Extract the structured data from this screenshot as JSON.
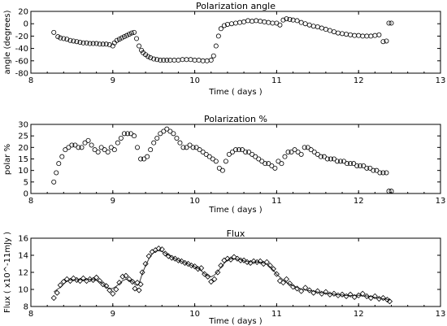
{
  "chart_data": [
    {
      "type": "scatter",
      "title": "Polarization angle",
      "xlabel": "Time ( days )",
      "ylabel": "angle (degrees)",
      "xlim": [
        8,
        13
      ],
      "ylim": [
        -80,
        20
      ],
      "x_ticks": [
        8,
        9,
        10,
        11,
        12,
        13
      ],
      "y_ticks": [
        -80,
        -60,
        -40,
        -20,
        0,
        20
      ],
      "x_tick_labels": [
        "8",
        "9",
        "10",
        "11",
        "12",
        "13"
      ],
      "y_tick_labels": [
        "-80",
        "-60",
        "-40",
        "-20",
        "0",
        "20"
      ],
      "marker": "circle",
      "x": [
        8.28,
        8.33,
        8.36,
        8.4,
        8.44,
        8.48,
        8.52,
        8.56,
        8.6,
        8.64,
        8.68,
        8.72,
        8.76,
        8.8,
        8.84,
        8.88,
        8.92,
        8.96,
        9.0,
        9.02,
        9.05,
        9.08,
        9.11,
        9.14,
        9.17,
        9.2,
        9.23,
        9.26,
        9.29,
        9.32,
        9.35,
        9.37,
        9.4,
        9.43,
        9.46,
        9.5,
        9.54,
        9.58,
        9.62,
        9.66,
        9.7,
        9.75,
        9.8,
        9.85,
        9.9,
        9.95,
        10.0,
        10.05,
        10.1,
        10.15,
        10.2,
        10.23,
        10.26,
        10.29,
        10.32,
        10.36,
        10.4,
        10.45,
        10.5,
        10.55,
        10.6,
        10.65,
        10.7,
        10.75,
        10.8,
        10.85,
        10.9,
        10.95,
        11.0,
        11.04,
        11.08,
        11.12,
        11.16,
        11.2,
        11.25,
        11.3,
        11.35,
        11.4,
        11.45,
        11.5,
        11.55,
        11.6,
        11.65,
        11.7,
        11.75,
        11.8,
        11.85,
        11.9,
        11.95,
        12.0,
        12.05,
        12.1,
        12.15,
        12.2,
        12.25,
        12.3,
        12.34,
        12.37,
        12.4
      ],
      "values": [
        -14,
        -21,
        -23,
        -24,
        -25,
        -27,
        -28,
        -29,
        -30,
        -31,
        -31,
        -32,
        -32,
        -32,
        -33,
        -33,
        -33,
        -34,
        -36,
        -31,
        -27,
        -25,
        -23,
        -21,
        -19,
        -17,
        -15,
        -14,
        -24,
        -36,
        -43,
        -47,
        -50,
        -53,
        -55,
        -57,
        -58,
        -59,
        -59,
        -59,
        -59,
        -59,
        -59,
        -58,
        -58,
        -58,
        -59,
        -59,
        -60,
        -60,
        -59,
        -52,
        -36,
        -20,
        -8,
        -3,
        -1,
        0,
        1,
        2,
        3,
        5,
        4,
        5,
        4,
        3,
        2,
        1,
        1,
        -2,
        6,
        8,
        7,
        6,
        5,
        2,
        0,
        -2,
        -4,
        -5,
        -7,
        -9,
        -11,
        -13,
        -15,
        -16,
        -17,
        -18,
        -19,
        -19,
        -20,
        -20,
        -20,
        -19,
        -18,
        -29,
        -28,
        1,
        1
      ]
    },
    {
      "type": "scatter",
      "title": "Polarization %",
      "xlabel": "Time ( days )",
      "ylabel": "polar %",
      "xlim": [
        8,
        13
      ],
      "ylim": [
        0,
        30
      ],
      "x_ticks": [
        8,
        9,
        10,
        11,
        12,
        13
      ],
      "y_ticks": [
        0,
        5,
        10,
        15,
        20,
        25,
        30
      ],
      "x_tick_labels": [
        "8",
        "9",
        "10",
        "11",
        "12",
        "13"
      ],
      "y_tick_labels": [
        "0",
        "5",
        "10",
        "15",
        "20",
        "25",
        "30"
      ],
      "marker": "circle",
      "x": [
        8.28,
        8.31,
        8.34,
        8.38,
        8.42,
        8.46,
        8.5,
        8.54,
        8.58,
        8.62,
        8.66,
        8.7,
        8.74,
        8.78,
        8.82,
        8.86,
        8.9,
        8.94,
        8.98,
        9.02,
        9.06,
        9.1,
        9.14,
        9.18,
        9.22,
        9.26,
        9.3,
        9.34,
        9.38,
        9.42,
        9.46,
        9.5,
        9.54,
        9.58,
        9.62,
        9.66,
        9.7,
        9.74,
        9.78,
        9.82,
        9.86,
        9.9,
        9.94,
        9.98,
        10.02,
        10.06,
        10.1,
        10.14,
        10.18,
        10.22,
        10.26,
        10.3,
        10.34,
        10.38,
        10.42,
        10.46,
        10.5,
        10.54,
        10.58,
        10.62,
        10.66,
        10.7,
        10.74,
        10.78,
        10.82,
        10.86,
        10.9,
        10.94,
        10.98,
        11.02,
        11.06,
        11.1,
        11.14,
        11.18,
        11.22,
        11.26,
        11.3,
        11.34,
        11.38,
        11.42,
        11.46,
        11.5,
        11.54,
        11.58,
        11.62,
        11.66,
        11.7,
        11.74,
        11.78,
        11.82,
        11.86,
        11.9,
        11.94,
        11.98,
        12.02,
        12.06,
        12.1,
        12.14,
        12.18,
        12.22,
        12.26,
        12.3,
        12.34,
        12.37,
        12.4
      ],
      "values": [
        5,
        9,
        13,
        16,
        19,
        20,
        21,
        21,
        20,
        20,
        22,
        23,
        21,
        19,
        18,
        20,
        19,
        18,
        20,
        19,
        22,
        24,
        26,
        26,
        26,
        25,
        20,
        15,
        15,
        16,
        19,
        22,
        24,
        26,
        27,
        28,
        27,
        26,
        24,
        22,
        20,
        20,
        21,
        20,
        20,
        19,
        18,
        17,
        16,
        15,
        14,
        11,
        10,
        14,
        17,
        18,
        19,
        19,
        19,
        18,
        18,
        17,
        16,
        15,
        14,
        13,
        13,
        12,
        11,
        14,
        13,
        16,
        18,
        18,
        19,
        18,
        17,
        20,
        20,
        19,
        18,
        17,
        16,
        16,
        15,
        15,
        15,
        14,
        14,
        14,
        13,
        13,
        13,
        12,
        12,
        12,
        11,
        11,
        10,
        10,
        9,
        9,
        9,
        1,
        1
      ]
    },
    {
      "type": "scatter",
      "title": "Flux",
      "xlabel": "Time ( days )",
      "ylabel": "Flux ( x10^-11mJy )",
      "xlim": [
        8,
        13
      ],
      "ylim": [
        8,
        16
      ],
      "x_ticks": [
        8,
        9,
        10,
        11,
        12,
        13
      ],
      "y_ticks": [
        8,
        10,
        12,
        14,
        16
      ],
      "x_tick_labels": [
        "8",
        "9",
        "10",
        "11",
        "12",
        "13"
      ],
      "y_tick_labels": [
        "8",
        "10",
        "12",
        "14",
        "16"
      ],
      "marker": "diamond",
      "x": [
        8.28,
        8.32,
        8.36,
        8.4,
        8.44,
        8.48,
        8.52,
        8.56,
        8.6,
        8.64,
        8.68,
        8.72,
        8.76,
        8.8,
        8.84,
        8.88,
        8.92,
        8.96,
        9.0,
        9.04,
        9.08,
        9.12,
        9.16,
        9.2,
        9.24,
        9.27,
        9.3,
        9.32,
        9.34,
        9.36,
        9.4,
        9.44,
        9.48,
        9.52,
        9.56,
        9.6,
        9.64,
        9.68,
        9.72,
        9.76,
        9.8,
        9.84,
        9.88,
        9.92,
        9.96,
        10.0,
        10.04,
        10.08,
        10.12,
        10.16,
        10.2,
        10.24,
        10.28,
        10.32,
        10.36,
        10.4,
        10.44,
        10.48,
        10.52,
        10.56,
        10.6,
        10.64,
        10.68,
        10.72,
        10.76,
        10.8,
        10.84,
        10.88,
        10.92,
        10.96,
        11.0,
        11.04,
        11.08,
        11.12,
        11.16,
        11.2,
        11.25,
        11.3,
        11.35,
        11.4,
        11.45,
        11.5,
        11.55,
        11.6,
        11.65,
        11.7,
        11.75,
        11.8,
        11.85,
        11.9,
        11.95,
        12.0,
        12.05,
        12.1,
        12.15,
        12.2,
        12.25,
        12.3,
        12.35,
        12.38
      ],
      "values": [
        9.0,
        9.6,
        10.5,
        10.9,
        11.2,
        11.0,
        11.3,
        11.1,
        11.0,
        11.3,
        11.0,
        11.2,
        11.1,
        11.4,
        11.0,
        10.6,
        10.4,
        9.9,
        9.5,
        10.0,
        10.8,
        11.5,
        11.6,
        11.2,
        10.9,
        10.1,
        10.8,
        9.9,
        10.6,
        12.0,
        13.0,
        13.9,
        14.4,
        14.6,
        14.8,
        14.7,
        14.2,
        13.9,
        13.7,
        13.6,
        13.4,
        13.3,
        13.1,
        13.0,
        12.8,
        12.7,
        12.4,
        12.5,
        11.8,
        11.5,
        10.9,
        11.2,
        12.0,
        12.8,
        13.4,
        13.6,
        13.5,
        13.8,
        13.6,
        13.4,
        13.4,
        13.2,
        13.1,
        13.3,
        13.2,
        13.3,
        13.0,
        13.2,
        12.8,
        12.4,
        11.8,
        11.0,
        10.8,
        11.2,
        10.7,
        10.3,
        10.1,
        9.8,
        10.2,
        9.9,
        9.6,
        9.8,
        9.5,
        9.7,
        9.4,
        9.5,
        9.3,
        9.4,
        9.2,
        9.4,
        9.1,
        9.3,
        9.5,
        9.2,
        9.0,
        9.2,
        8.9,
        9.0,
        8.8,
        8.6
      ]
    }
  ]
}
